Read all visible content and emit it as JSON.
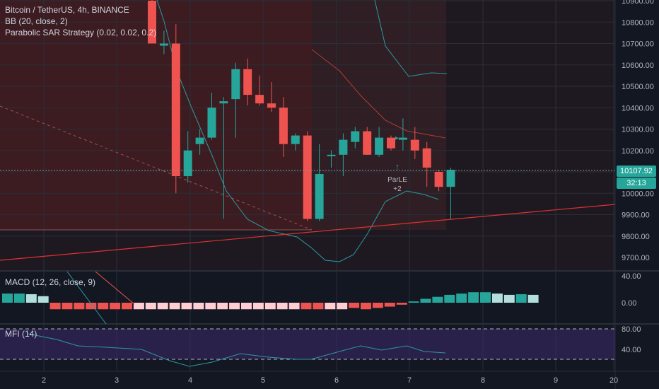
{
  "legend": {
    "symbol": "Bitcoin / TetherUS, 4h, BINANCE",
    "bb": "BB (20, close, 2)",
    "sar": "Parabolic SAR Strategy (0.02, 0.02, 0.2)"
  },
  "macd_label": "MACD (12, 26, close, 9)",
  "mfi_label": "MFI (14)",
  "price_axis": [
    "10900.00",
    "10800.00",
    "10700.00",
    "10600.00",
    "10500.00",
    "10400.00",
    "10300.00",
    "10200.00",
    "10000.00",
    "9900.00",
    "9800.00",
    "9700.00"
  ],
  "current_price": "10107.92",
  "countdown": "32:13",
  "macd_axis": [
    "40.00",
    "0.00"
  ],
  "mfi_axis": [
    "80.00",
    "40.00"
  ],
  "time_axis": [
    "2",
    "3",
    "4",
    "5",
    "6",
    "7",
    "8",
    "9",
    "20"
  ],
  "signal": {
    "label": "ParLE",
    "value": "+2"
  },
  "colors": {
    "up": "#26a69a",
    "down": "#ef5350",
    "bg": "#131722",
    "bb": "#2a9aa0",
    "price_line": "#e03131",
    "rect": "#8b2326",
    "macd_light_up": "#b2dfdb",
    "macd_light_down": "#ffcdd2",
    "mfi_bg": "#3d2a6b"
  },
  "chart_data": {
    "type": "candlestick",
    "ylim": [
      9650,
      10900
    ],
    "candles": [
      {
        "o": 10900,
        "h": 10910,
        "l": 10700,
        "c": 10700
      },
      {
        "o": 10690,
        "h": 10760,
        "l": 10650,
        "c": 10700
      },
      {
        "o": 10700,
        "h": 10790,
        "l": 10000,
        "c": 10080
      },
      {
        "o": 10080,
        "h": 10290,
        "l": 10050,
        "c": 10200
      },
      {
        "o": 10230,
        "h": 10300,
        "l": 10180,
        "c": 10260
      },
      {
        "o": 10260,
        "h": 10470,
        "l": 10250,
        "c": 10400
      },
      {
        "o": 10420,
        "h": 10450,
        "l": 9880,
        "c": 10430
      },
      {
        "o": 10440,
        "h": 10610,
        "l": 10260,
        "c": 10580
      },
      {
        "o": 10580,
        "h": 10630,
        "l": 10410,
        "c": 10460
      },
      {
        "o": 10460,
        "h": 10550,
        "l": 10410,
        "c": 10420
      },
      {
        "o": 10420,
        "h": 10520,
        "l": 10380,
        "c": 10400
      },
      {
        "o": 10400,
        "h": 10450,
        "l": 10170,
        "c": 10230
      },
      {
        "o": 10230,
        "h": 10280,
        "l": 10200,
        "c": 10270
      },
      {
        "o": 10270,
        "h": 10290,
        "l": 9870,
        "c": 9880
      },
      {
        "o": 9880,
        "h": 10230,
        "l": 9870,
        "c": 10090
      },
      {
        "o": 10180,
        "h": 10200,
        "l": 10120,
        "c": 10180
      },
      {
        "o": 10180,
        "h": 10280,
        "l": 10080,
        "c": 10250
      },
      {
        "o": 10240,
        "h": 10310,
        "l": 10210,
        "c": 10290
      },
      {
        "o": 10290,
        "h": 10310,
        "l": 10180,
        "c": 10180
      },
      {
        "o": 10180,
        "h": 10310,
        "l": 10170,
        "c": 10260
      },
      {
        "o": 10260,
        "h": 10270,
        "l": 10200,
        "c": 10210
      },
      {
        "o": 10250,
        "h": 10350,
        "l": 10200,
        "c": 10260
      },
      {
        "o": 10250,
        "h": 10310,
        "l": 10160,
        "c": 10200
      },
      {
        "o": 10210,
        "h": 10240,
        "l": 10030,
        "c": 10120
      },
      {
        "o": 10100,
        "h": 10110,
        "l": 10010,
        "c": 10030
      },
      {
        "o": 10030,
        "h": 10120,
        "l": 9880,
        "c": 10110
      }
    ],
    "macd_histogram": [
      14,
      14,
      13,
      10,
      -10,
      -10,
      -10,
      -10,
      -10,
      -10,
      -10,
      -10,
      -10,
      -10,
      -10,
      -10,
      -10,
      -10,
      -10,
      -10,
      -10,
      -10,
      -10,
      -10,
      -10,
      -10,
      -10,
      -10,
      -10,
      -8,
      -10,
      -8,
      -6,
      -3,
      2,
      6,
      9,
      12,
      14,
      16,
      16,
      14,
      12,
      13,
      12
    ]
  }
}
